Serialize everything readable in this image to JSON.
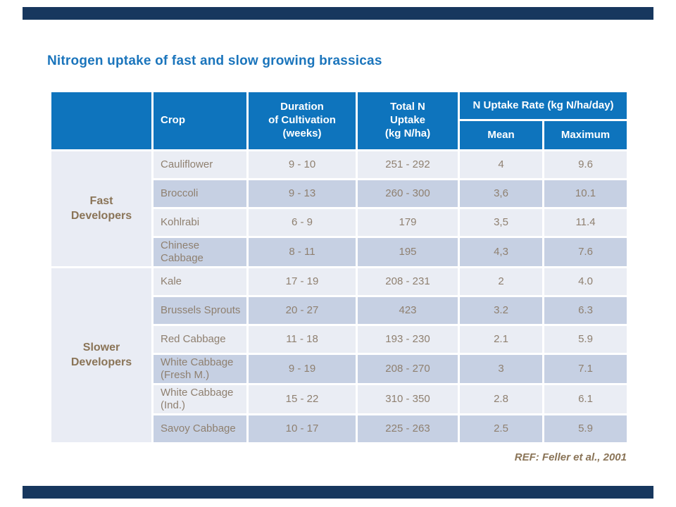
{
  "slide": {
    "title": "Nitrogen uptake of fast and slow growing brassicas",
    "reference": "REF: Feller et al., 2001",
    "colors": {
      "accent_header_blue": "#0e74bd",
      "title_blue": "#1b75bc",
      "decor_bar_navy": "#17375e",
      "row_light": "#eaedf4",
      "row_dark": "#c6d0e3",
      "group_column_bg": "#e9ecf4",
      "body_text_brown": "#8f8070",
      "label_brown": "#8a7457"
    }
  },
  "table": {
    "headers": {
      "corner": "",
      "crop": "Crop",
      "duration": "Duration\nof Cultivation\n(weeks)",
      "total_n": "Total N\nUptake\n(kg N/ha)",
      "uptake_rate": "N Uptake Rate (kg N/ha/day)",
      "mean": "Mean",
      "maximum": "Maximum"
    },
    "groups": [
      {
        "label": "Fast\nDevelopers",
        "rows": [
          {
            "crop": "Cauliflower",
            "duration": "9 - 10",
            "total": "251 - 292",
            "mean": "4",
            "max": "9.6"
          },
          {
            "crop": "Broccoli",
            "duration": "9 - 13",
            "total": "260 - 300",
            "mean": "3,6",
            "max": "10.1"
          },
          {
            "crop": "Kohlrabi",
            "duration": "6 - 9",
            "total": "179",
            "mean": "3,5",
            "max": "11.4"
          },
          {
            "crop": "Chinese Cabbage",
            "duration": "8 - 11",
            "total": "195",
            "mean": "4,3",
            "max": "7.6"
          }
        ]
      },
      {
        "label": "Slower\nDevelopers",
        "rows": [
          {
            "crop": "Kale",
            "duration": "17 - 19",
            "total": "208 - 231",
            "mean": "2",
            "max": "4.0"
          },
          {
            "crop": "Brussels Sprouts",
            "duration": "20 - 27",
            "total": "423",
            "mean": "3.2",
            "max": "6.3"
          },
          {
            "crop": "Red Cabbage",
            "duration": "11 - 18",
            "total": "193 - 230",
            "mean": "2.1",
            "max": "5.9"
          },
          {
            "crop": "White Cabbage (Fresh M.)",
            "duration": "9 - 19",
            "total": "208 - 270",
            "mean": "3",
            "max": "7.1"
          },
          {
            "crop": "White Cabbage (Ind.)",
            "duration": "15 - 22",
            "total": "310 - 350",
            "mean": "2.8",
            "max": "6.1"
          },
          {
            "crop": "Savoy Cabbage",
            "duration": "10 - 17",
            "total": "225 - 263",
            "mean": "2.5",
            "max": "5.9"
          }
        ]
      }
    ]
  }
}
